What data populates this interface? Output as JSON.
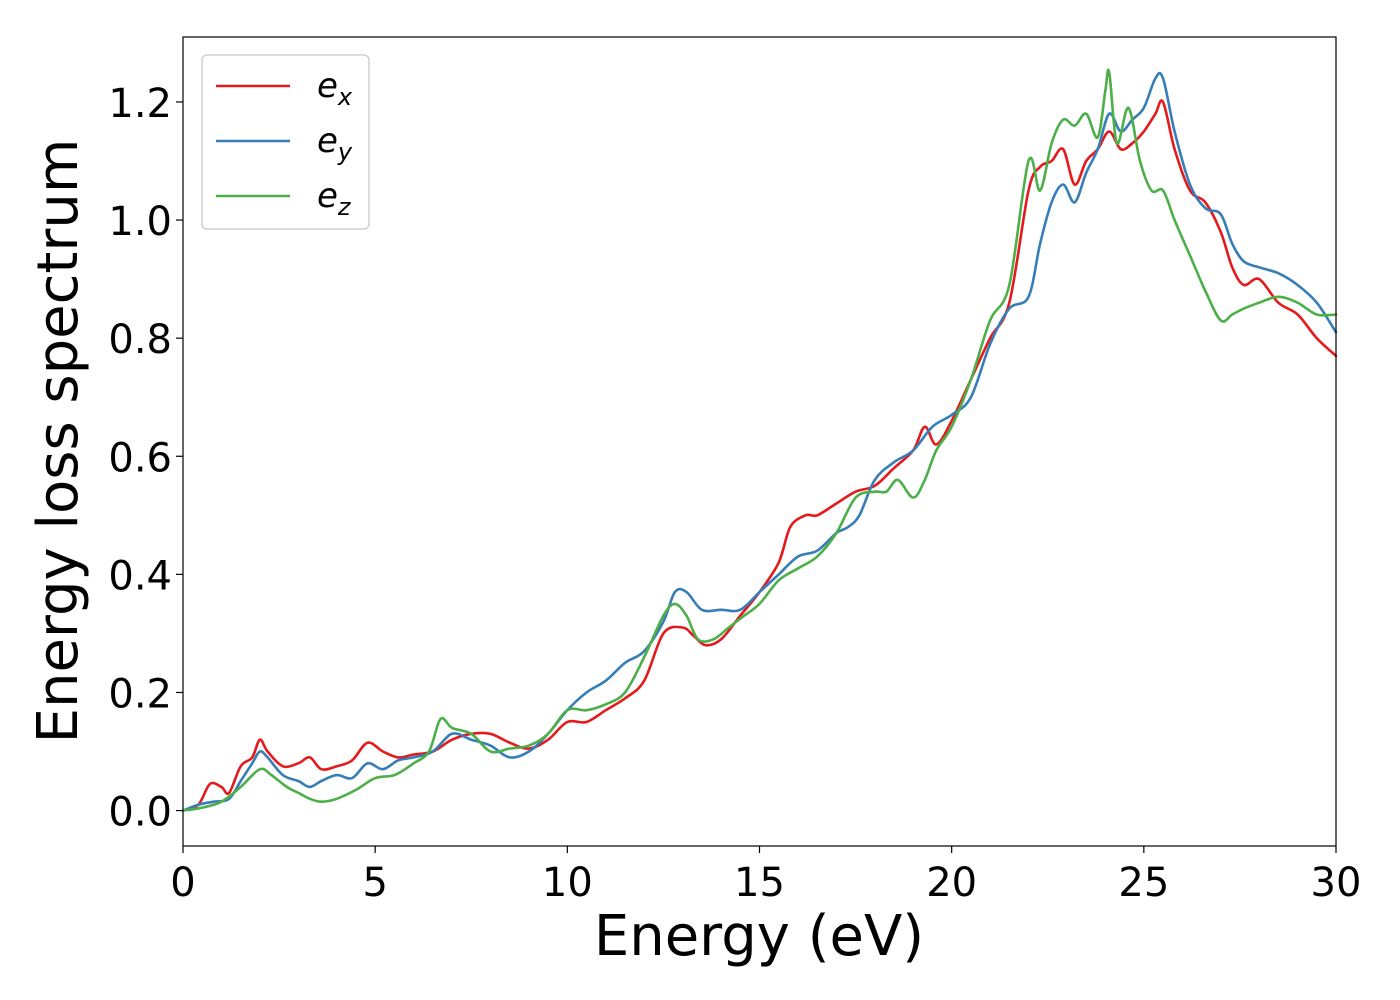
{
  "chart_data": {
    "type": "line",
    "xlabel": "Energy (eV)",
    "ylabel": "Energy loss spectrum",
    "xlim": [
      0,
      30
    ],
    "ylim": [
      -0.06,
      1.31
    ],
    "xticks": [
      0,
      5,
      10,
      15,
      20,
      25,
      30
    ],
    "yticks": [
      0.0,
      0.2,
      0.4,
      0.6,
      0.8,
      1.0,
      1.2
    ],
    "xtick_labels": [
      "0",
      "5",
      "10",
      "15",
      "20",
      "25",
      "30"
    ],
    "ytick_labels": [
      "0.0",
      "0.2",
      "0.4",
      "0.6",
      "0.8",
      "1.0",
      "1.2"
    ],
    "grid": false,
    "legend_position": "top-left",
    "series": [
      {
        "name": "e_x",
        "label_base": "e",
        "label_sub": "x",
        "color": "#e41a1c",
        "x": [
          0,
          0.4,
          0.7,
          1.0,
          1.2,
          1.5,
          1.8,
          2.0,
          2.2,
          2.6,
          3.0,
          3.3,
          3.6,
          4.0,
          4.4,
          4.8,
          5.2,
          5.6,
          6.0,
          6.5,
          7.0,
          7.5,
          8.0,
          8.5,
          9.0,
          9.5,
          10.0,
          10.5,
          11.0,
          11.5,
          12.0,
          12.5,
          13.0,
          13.3,
          13.6,
          14.0,
          14.5,
          15.0,
          15.5,
          15.8,
          16.2,
          16.5,
          17.0,
          17.5,
          18.0,
          18.5,
          19.0,
          19.3,
          19.6,
          20.0,
          20.5,
          21.0,
          21.5,
          22.0,
          22.3,
          22.6,
          22.9,
          23.2,
          23.5,
          23.8,
          24.1,
          24.4,
          24.7,
          25.0,
          25.3,
          25.5,
          25.8,
          26.2,
          26.6,
          27.0,
          27.3,
          27.6,
          28.0,
          28.5,
          29.0,
          29.5,
          30.0
        ],
        "y": [
          0.0,
          0.01,
          0.045,
          0.04,
          0.03,
          0.075,
          0.09,
          0.12,
          0.1,
          0.075,
          0.08,
          0.09,
          0.07,
          0.075,
          0.085,
          0.115,
          0.1,
          0.09,
          0.095,
          0.1,
          0.12,
          0.13,
          0.13,
          0.115,
          0.105,
          0.12,
          0.15,
          0.15,
          0.17,
          0.19,
          0.22,
          0.3,
          0.31,
          0.295,
          0.28,
          0.29,
          0.33,
          0.37,
          0.42,
          0.48,
          0.5,
          0.5,
          0.52,
          0.54,
          0.55,
          0.58,
          0.61,
          0.65,
          0.62,
          0.66,
          0.73,
          0.8,
          0.86,
          1.05,
          1.09,
          1.1,
          1.12,
          1.06,
          1.1,
          1.12,
          1.15,
          1.12,
          1.13,
          1.15,
          1.18,
          1.2,
          1.12,
          1.05,
          1.03,
          0.98,
          0.92,
          0.89,
          0.9,
          0.86,
          0.84,
          0.8,
          0.77
        ]
      },
      {
        "name": "e_y",
        "label_base": "e",
        "label_sub": "y",
        "color": "#377eb8",
        "x": [
          0,
          0.4,
          0.8,
          1.2,
          1.5,
          1.8,
          2.0,
          2.2,
          2.6,
          3.0,
          3.3,
          3.6,
          4.0,
          4.4,
          4.8,
          5.2,
          5.6,
          6.0,
          6.5,
          7.0,
          7.5,
          8.0,
          8.5,
          9.0,
          9.5,
          10.0,
          10.5,
          11.0,
          11.5,
          12.0,
          12.5,
          12.8,
          13.1,
          13.5,
          14.0,
          14.5,
          15.0,
          15.5,
          16.0,
          16.5,
          17.0,
          17.3,
          17.6,
          18.0,
          18.5,
          19.0,
          19.5,
          20.0,
          20.5,
          21.0,
          21.5,
          22.0,
          22.3,
          22.6,
          22.9,
          23.2,
          23.5,
          23.8,
          24.1,
          24.4,
          24.7,
          25.0,
          25.3,
          25.5,
          25.8,
          26.2,
          26.6,
          27.0,
          27.3,
          27.6,
          28.0,
          28.5,
          29.0,
          29.5,
          30.0
        ],
        "y": [
          0.0,
          0.01,
          0.015,
          0.02,
          0.05,
          0.08,
          0.1,
          0.09,
          0.06,
          0.05,
          0.04,
          0.05,
          0.06,
          0.055,
          0.08,
          0.07,
          0.085,
          0.09,
          0.1,
          0.13,
          0.12,
          0.11,
          0.09,
          0.1,
          0.13,
          0.17,
          0.2,
          0.22,
          0.25,
          0.27,
          0.32,
          0.37,
          0.37,
          0.34,
          0.34,
          0.34,
          0.37,
          0.4,
          0.43,
          0.44,
          0.47,
          0.48,
          0.5,
          0.56,
          0.59,
          0.61,
          0.65,
          0.67,
          0.7,
          0.79,
          0.85,
          0.87,
          0.96,
          1.03,
          1.06,
          1.03,
          1.08,
          1.12,
          1.18,
          1.15,
          1.17,
          1.19,
          1.24,
          1.24,
          1.15,
          1.06,
          1.02,
          1.01,
          0.96,
          0.93,
          0.92,
          0.91,
          0.89,
          0.86,
          0.81
        ]
      },
      {
        "name": "e_z",
        "label_base": "e",
        "label_sub": "z",
        "color": "#4daf4a",
        "x": [
          0,
          0.5,
          1.0,
          1.5,
          2.0,
          2.3,
          2.7,
          3.0,
          3.3,
          3.6,
          4.0,
          4.5,
          5.0,
          5.5,
          6.0,
          6.4,
          6.7,
          7.0,
          7.5,
          8.0,
          8.5,
          9.0,
          9.5,
          10.0,
          10.5,
          11.0,
          11.5,
          12.0,
          12.5,
          12.8,
          13.1,
          13.4,
          13.8,
          14.2,
          14.6,
          15.0,
          15.5,
          16.0,
          16.5,
          17.0,
          17.5,
          18.0,
          18.3,
          18.6,
          19.0,
          19.3,
          19.6,
          20.0,
          20.5,
          21.0,
          21.5,
          22.0,
          22.3,
          22.6,
          22.9,
          23.2,
          23.5,
          23.8,
          24.0,
          24.1,
          24.3,
          24.6,
          24.9,
          25.2,
          25.5,
          25.8,
          26.2,
          26.6,
          27.0,
          27.3,
          27.6,
          28.0,
          28.5,
          29.0,
          29.5,
          30.0
        ],
        "y": [
          0.0,
          0.005,
          0.015,
          0.04,
          0.07,
          0.06,
          0.04,
          0.03,
          0.02,
          0.015,
          0.02,
          0.035,
          0.055,
          0.06,
          0.08,
          0.1,
          0.155,
          0.14,
          0.13,
          0.1,
          0.105,
          0.11,
          0.13,
          0.17,
          0.17,
          0.18,
          0.2,
          0.26,
          0.33,
          0.35,
          0.33,
          0.29,
          0.29,
          0.31,
          0.33,
          0.35,
          0.39,
          0.41,
          0.43,
          0.47,
          0.53,
          0.54,
          0.54,
          0.56,
          0.53,
          0.56,
          0.61,
          0.65,
          0.73,
          0.83,
          0.89,
          1.1,
          1.05,
          1.13,
          1.17,
          1.16,
          1.18,
          1.14,
          1.22,
          1.25,
          1.13,
          1.19,
          1.1,
          1.05,
          1.05,
          1.0,
          0.94,
          0.88,
          0.83,
          0.84,
          0.85,
          0.86,
          0.87,
          0.86,
          0.84,
          0.84
        ]
      }
    ]
  }
}
